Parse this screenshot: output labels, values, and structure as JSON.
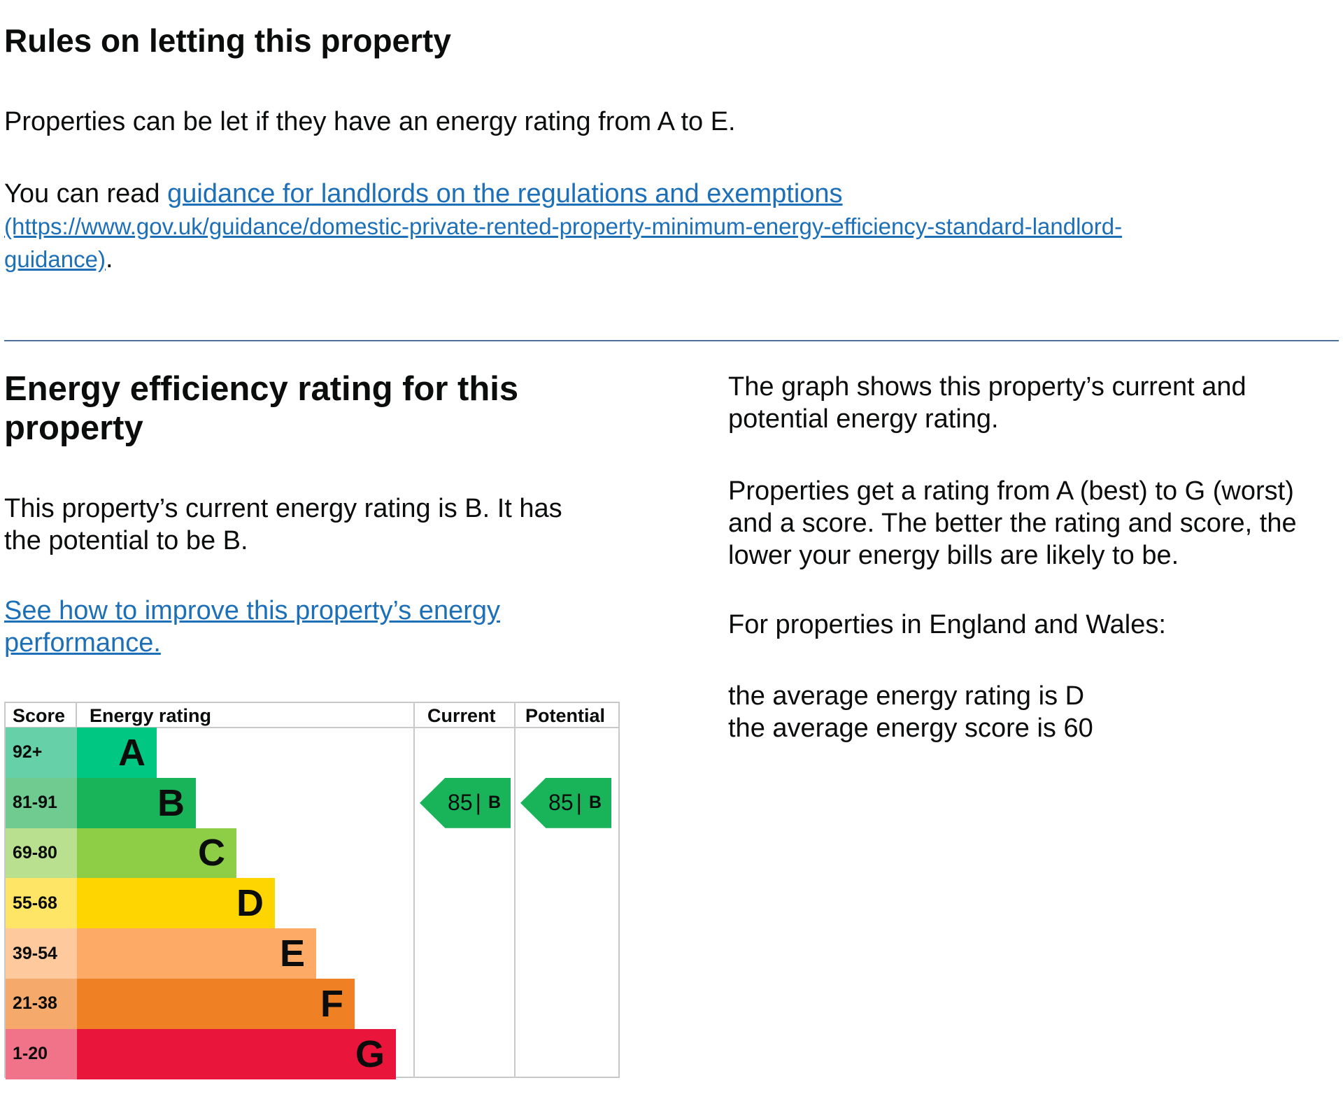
{
  "rules": {
    "title": "Rules on letting this property",
    "para1": "Properties can be let if they have an energy rating from A to E.",
    "para2_prefix": "You can read ",
    "link_text": "guidance for landlords on the regulations and exemptions",
    "link_url_text": "(https://www.gov.uk/guidance/domestic-private-rented-property-minimum-energy-efficiency-standard-landlord-",
    "link_url_text_2": "guidance)",
    "para2_suffix": "."
  },
  "efficiency": {
    "title": "Energy efficiency rating for this property",
    "summary_line1": "This property’s current energy rating is B. It has",
    "summary_line2": "the potential to be B.",
    "improve_link_line1": "See how to improve this property’s energy",
    "improve_link_line2": "performance."
  },
  "explanation": {
    "line1": "The graph shows this property’s current and",
    "line2": "potential energy rating.",
    "line3": "Properties get a rating from A (best) to G (worst)",
    "line4": "and a score. The better the rating and score, the",
    "line5": "lower your energy bills are likely to be.",
    "line6": "For properties in England and Wales:",
    "line7": "the average energy rating is D",
    "line8": "the average energy score is 60"
  },
  "chart_data": {
    "type": "table",
    "headers": {
      "score": "Score",
      "rating": "Energy rating",
      "current": "Current",
      "potential": "Potential"
    },
    "bands": [
      {
        "letter": "A",
        "range": "92+",
        "color": "#00c781",
        "score_color": "#66d1a8"
      },
      {
        "letter": "B",
        "range": "81-91",
        "color": "#19b459",
        "score_color": "#6fcb8f"
      },
      {
        "letter": "C",
        "range": "69-80",
        "color": "#8dce46",
        "score_color": "#b9e08e"
      },
      {
        "letter": "D",
        "range": "55-68",
        "color": "#ffd500",
        "score_color": "#ffe566"
      },
      {
        "letter": "E",
        "range": "39-54",
        "color": "#fcaa65",
        "score_color": "#fdc99d"
      },
      {
        "letter": "F",
        "range": "21-38",
        "color": "#ef8023",
        "score_color": "#f5aa6b"
      },
      {
        "letter": "G",
        "range": "1-20",
        "color": "#e9153b",
        "score_color": "#f07389"
      }
    ],
    "current": {
      "score": 85,
      "letter": "B",
      "separator": "|"
    },
    "potential": {
      "score": 85,
      "letter": "B",
      "separator": "|"
    }
  }
}
